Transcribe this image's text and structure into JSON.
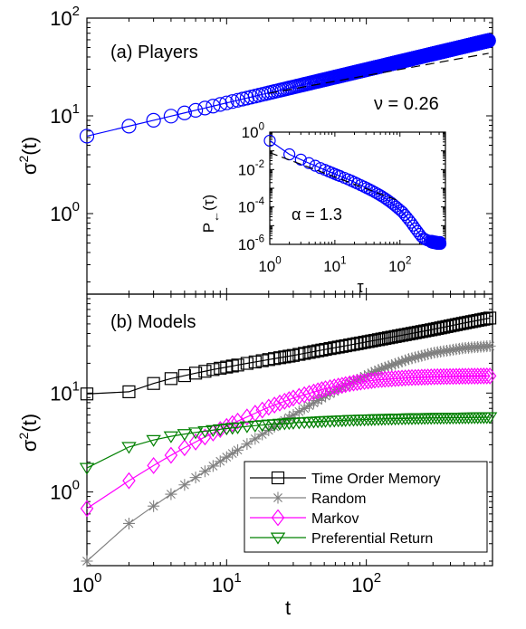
{
  "chart_data": [
    {
      "panel": "a",
      "type": "line",
      "title": "(a) Players",
      "xlabel": "",
      "ylabel": "σ²(t)",
      "x_scale": "log",
      "y_scale": "log",
      "xlim": [
        1,
        800
      ],
      "ylim": [
        0.15,
        100
      ],
      "y_ticks": [
        {
          "value": 1,
          "label_base": "10",
          "label_exp": "0"
        },
        {
          "value": 10,
          "label_base": "10",
          "label_exp": "1"
        },
        {
          "value": 100,
          "label_base": "10",
          "label_exp": "2"
        }
      ],
      "series": [
        {
          "color": "#0000ff",
          "marker": "circle",
          "power_law": {
            "coefficient": 6.2,
            "exponent": 0.34,
            "x_min": 1,
            "x_max": 750
          }
        }
      ],
      "reference_line": {
        "label": "ν = 0.26",
        "exponent": 0.26,
        "x_start": 20,
        "x_end": 750,
        "y_start": 17,
        "style": "dashed"
      },
      "inset": {
        "xlabel": "τ",
        "ylabel_base": "P",
        "ylabel_sub": "←",
        "ylabel_arg": "(τ)",
        "x_scale": "log",
        "y_scale": "log",
        "xlim": [
          1,
          500
        ],
        "ylim": [
          1e-06,
          1
        ],
        "x_ticks": [
          {
            "value": 1,
            "label_base": "10",
            "label_exp": "0"
          },
          {
            "value": 10,
            "label_base": "10",
            "label_exp": "1"
          },
          {
            "value": 100,
            "label_base": "10",
            "label_exp": "2"
          }
        ],
        "y_ticks": [
          {
            "value": 1,
            "label_base": "10",
            "label_exp": "0"
          },
          {
            "value": 0.01,
            "label_base": "10",
            "label_exp": "-2"
          },
          {
            "value": 0.0001,
            "label_base": "10",
            "label_exp": "-4"
          },
          {
            "value": 1e-06,
            "label_base": "10",
            "label_exp": "-6"
          }
        ],
        "series": [
          {
            "color": "#0000ff",
            "marker": "circle",
            "x": [
              1,
              1.3,
              1.6,
              2,
              2.5,
              3,
              3.5,
              4,
              5,
              6,
              7,
              8,
              10,
              12,
              15,
              18,
              22,
              27,
              33,
              40,
              50,
              60,
              75,
              90,
              110,
              130,
              150,
              170,
              190,
              210,
              230,
              250,
              270,
              290,
              310,
              330,
              350,
              370,
              390,
              410
            ],
            "y": [
              0.35,
              0.16,
              0.1,
              0.065,
              0.045,
              0.034,
              0.027,
              0.022,
              0.016,
              0.012,
              0.0097,
              0.008,
              0.0058,
              0.0045,
              0.0033,
              0.0025,
              0.0018,
              0.0013,
              0.00092,
              0.00065,
              0.00042,
              0.00028,
              0.00016,
              9.5e-05,
              5.2e-05,
              2.6e-05,
              1.4e-05,
              7.5e-06,
              4.5e-06,
              2.8e-06,
              2.1e-06,
              1.8e-06,
              1.6e-06,
              1.5e-06,
              1.4e-06,
              1.3e-06,
              1.3e-06,
              1.2e-06,
              1.2e-06,
              1.2e-06
            ]
          }
        ],
        "reference_line": {
          "label": "α = 1.3",
          "exponent": -1.3,
          "x_start": 1,
          "x_end": 100,
          "y_start": 0.08,
          "style": "dashed"
        }
      }
    },
    {
      "panel": "b",
      "type": "line",
      "title": "(b) Models",
      "xlabel": "t",
      "ylabel": "σ²(t)",
      "x_scale": "log",
      "y_scale": "log",
      "xlim": [
        1,
        800
      ],
      "ylim": [
        0.18,
        100
      ],
      "x_ticks": [
        {
          "value": 1,
          "label_base": "10",
          "label_exp": "0"
        },
        {
          "value": 10,
          "label_base": "10",
          "label_exp": "1"
        },
        {
          "value": 100,
          "label_base": "10",
          "label_exp": "2"
        }
      ],
      "y_ticks": [
        {
          "value": 1,
          "label_base": "10",
          "label_exp": "0"
        },
        {
          "value": 10,
          "label_base": "10",
          "label_exp": "1"
        }
      ],
      "legend_position": "bottom-right",
      "series": [
        {
          "name": "Time Order Memory",
          "color": "#000000",
          "marker": "square",
          "x": [
            1,
            2,
            3,
            4,
            5,
            6,
            7,
            8,
            10,
            12,
            15,
            20,
            30,
            50,
            80,
            120,
            200,
            300,
            500,
            800
          ],
          "y": [
            9.8,
            10.3,
            12.5,
            14.0,
            15.0,
            15.9,
            16.6,
            17.3,
            18.3,
            19.2,
            20.3,
            21.8,
            24.0,
            27.5,
            31.0,
            34.5,
            39.5,
            44.0,
            51.0,
            58.0
          ]
        },
        {
          "name": "Random",
          "color": "#808080",
          "marker": "star",
          "x": [
            1,
            2,
            3,
            4,
            5,
            6,
            7,
            8,
            10,
            12,
            15,
            20,
            30,
            50,
            80,
            120,
            200,
            300,
            500,
            800
          ],
          "y": [
            0.2,
            0.48,
            0.72,
            0.95,
            1.18,
            1.4,
            1.62,
            1.83,
            2.25,
            2.65,
            3.25,
            4.2,
            6.0,
            9.2,
            13.0,
            17.0,
            22.0,
            25.5,
            28.5,
            30.0
          ]
        },
        {
          "name": "Markov",
          "color": "#ff00ff",
          "marker": "diamond",
          "x": [
            1,
            2,
            3,
            4,
            5,
            6,
            7,
            8,
            10,
            12,
            15,
            20,
            30,
            50,
            80,
            120,
            200,
            300,
            500,
            800
          ],
          "y": [
            0.68,
            1.3,
            1.85,
            2.35,
            2.8,
            3.2,
            3.6,
            3.95,
            4.6,
            5.2,
            6.0,
            7.2,
            8.9,
            11.0,
            12.6,
            13.6,
            14.3,
            14.6,
            14.8,
            14.9
          ]
        },
        {
          "name": "Preferential Return",
          "color": "#008000",
          "marker": "triangle-down",
          "x": [
            1,
            2,
            3,
            4,
            5,
            6,
            7,
            8,
            10,
            12,
            15,
            20,
            30,
            50,
            80,
            120,
            200,
            300,
            500,
            800
          ],
          "y": [
            1.75,
            2.85,
            3.35,
            3.65,
            3.85,
            4.0,
            4.12,
            4.22,
            4.38,
            4.5,
            4.65,
            4.8,
            5.0,
            5.2,
            5.35,
            5.45,
            5.55,
            5.6,
            5.65,
            5.7
          ]
        }
      ]
    }
  ]
}
